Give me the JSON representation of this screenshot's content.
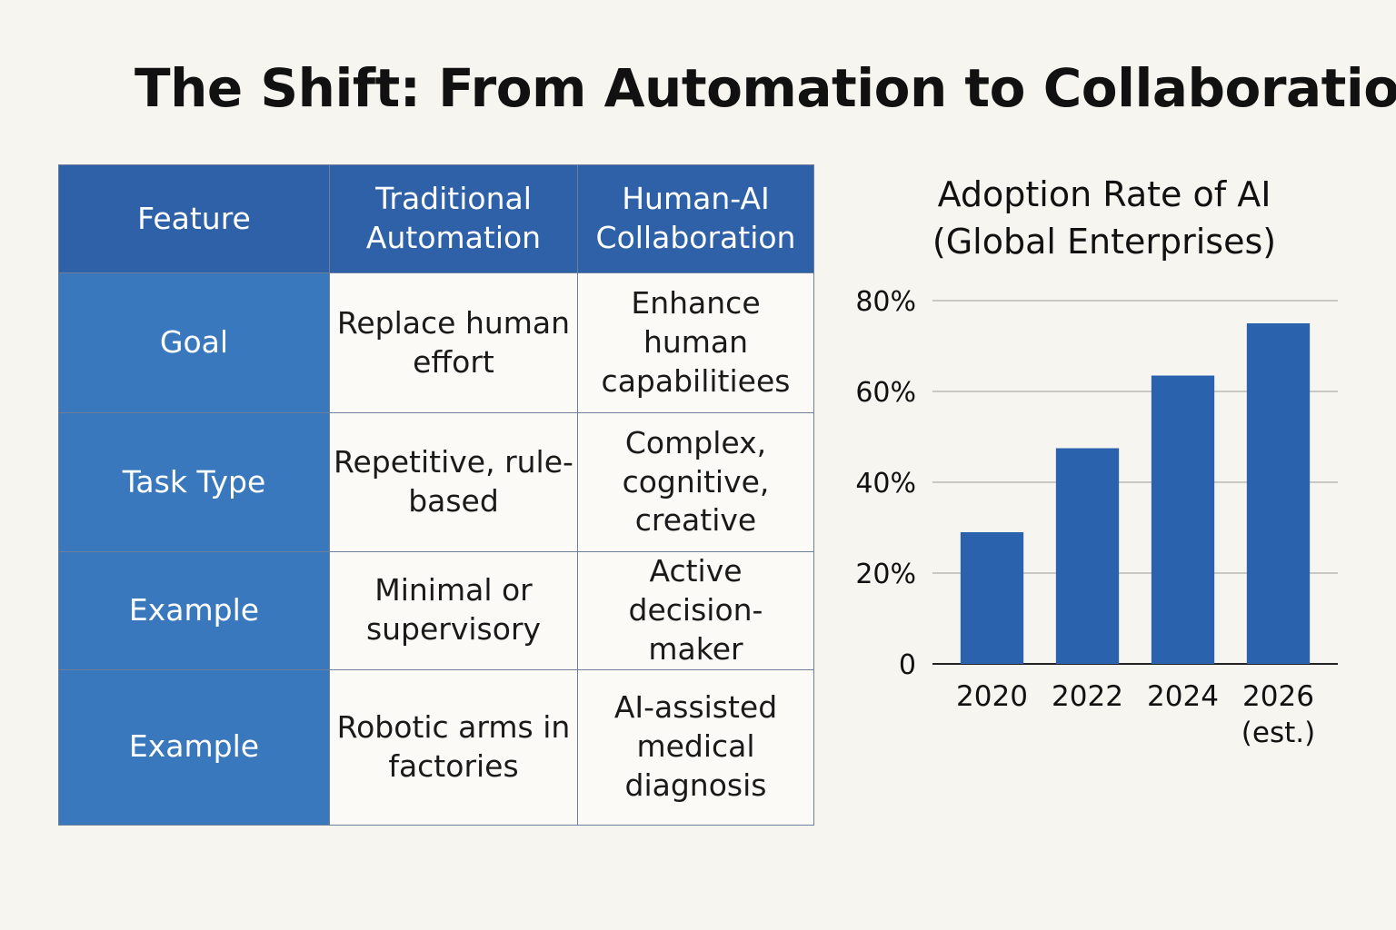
{
  "page": {
    "title": "The Shift: From Automation to Collaboration"
  },
  "table": {
    "headers": [
      "Feature",
      "Traditional Automation",
      "Human-AI Collaboration"
    ],
    "rows": [
      {
        "feature": "Goal",
        "traditional": "Replace human effort",
        "collaboration": "Enhance human capabilitiees"
      },
      {
        "feature": "Task Type",
        "traditional": "Repetitive, rule-based",
        "collaboration": "Complex, cognitive, creative"
      },
      {
        "feature": "Example",
        "traditional": "Minimal or supervisory",
        "collaboration": "Active decision-maker"
      },
      {
        "feature": "Example",
        "traditional": "Robotic arms in factories",
        "collaboration": "AI-assisted medical diagnosis"
      }
    ],
    "colors": {
      "header_bg": "#2e61a8",
      "feature_bg": "#3a78bd"
    }
  },
  "chart_data": {
    "type": "bar",
    "title": "Adoption Rate of AI\n(Global Enterprises)",
    "categories": [
      "2020",
      "2022",
      "2024",
      "2026\n(est.)"
    ],
    "values": [
      29,
      47.5,
      63.5,
      75
    ],
    "ylim": [
      0,
      80
    ],
    "yticks": [
      "0",
      "20%",
      "40%",
      "60%",
      "80%"
    ],
    "ytick_values": [
      0,
      20,
      40,
      60,
      80
    ],
    "xlabel": "",
    "ylabel": "",
    "grid": true,
    "bar_color": "#2b62ad"
  }
}
